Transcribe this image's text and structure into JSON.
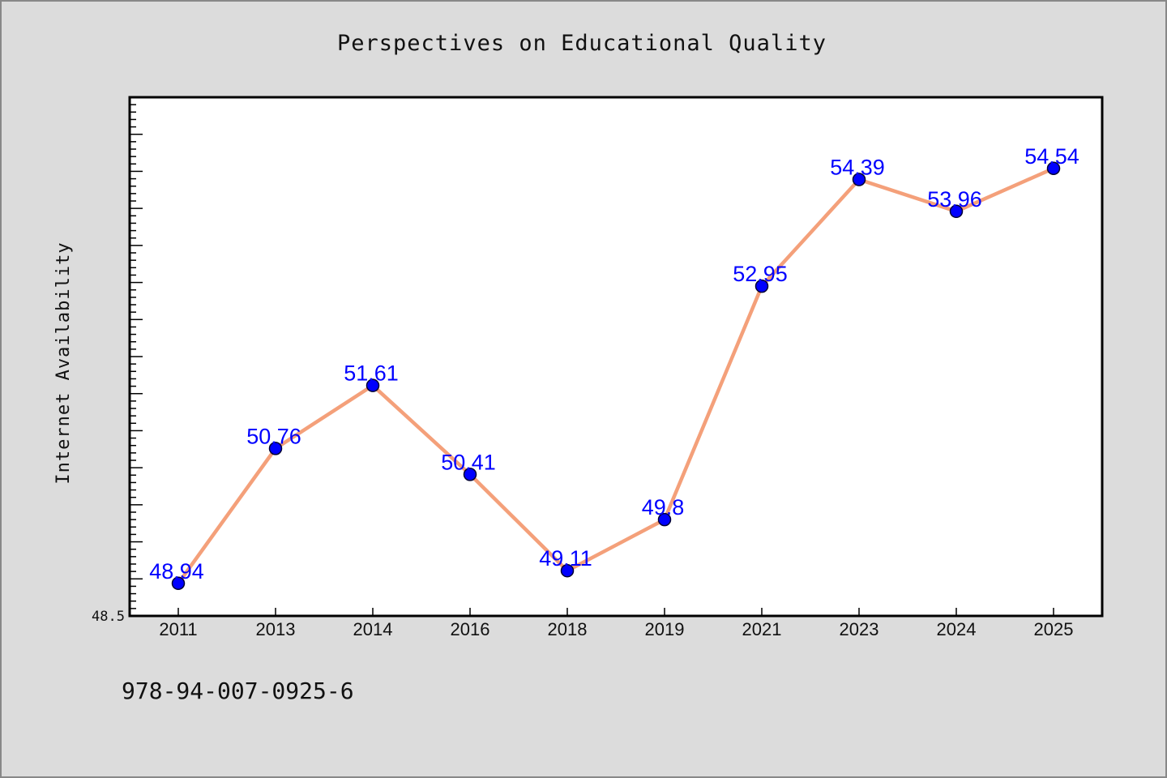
{
  "chart_data": {
    "type": "line",
    "title": "Perspectives on Educational Quality",
    "xlabel": "",
    "ylabel": "Internet Availability",
    "categories": [
      "2011",
      "2013",
      "2014",
      "2016",
      "2018",
      "2019",
      "2021",
      "2023",
      "2024",
      "2025"
    ],
    "series": [
      {
        "values": [
          48.94,
          50.76,
          51.61,
          50.41,
          49.11,
          49.8,
          52.95,
          54.39,
          53.96,
          54.54
        ],
        "labels": [
          "48.94",
          "50.76",
          "51.61",
          "50.41",
          "49.11",
          "49.8",
          "52.95",
          "54.39",
          "53.96",
          "54.54"
        ],
        "line_color": "#f4a07a",
        "marker_color": "#0000ff",
        "label_color": "#0000ff"
      }
    ],
    "ylim": [
      48.5,
      55.5
    ],
    "yticks_labeled": [
      {
        "value": 48.5,
        "label": "48.5"
      }
    ],
    "minor_tick_step": 0.5,
    "grid": false,
    "legend": "none"
  },
  "footer": {
    "isbn": "978-94-007-0925-6"
  },
  "colors": {
    "background": "#dcdcdc",
    "plot_background": "#ffffff"
  }
}
